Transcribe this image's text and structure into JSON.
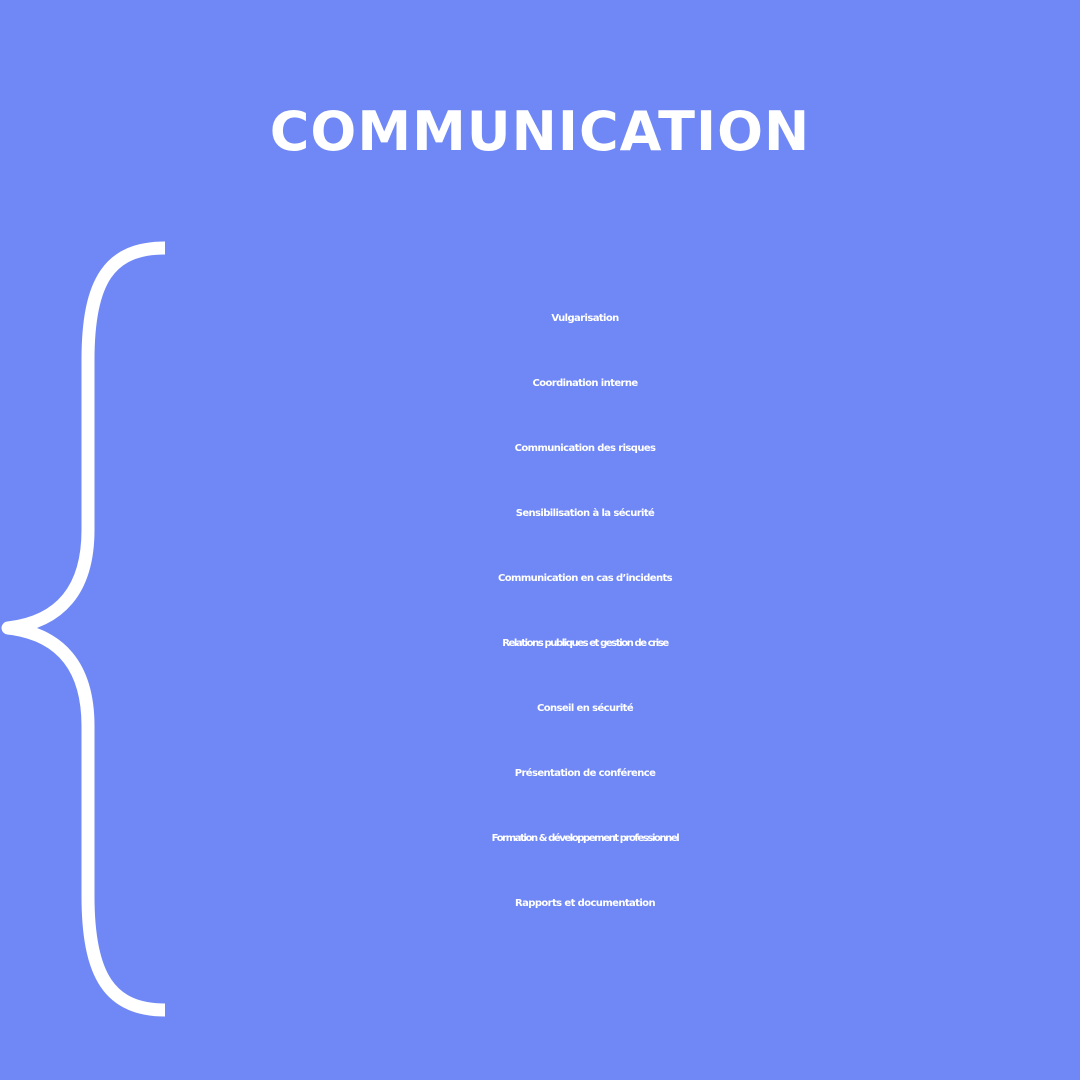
{
  "colors": {
    "background": "#7088F6",
    "text": "#FFFFFF"
  },
  "title": "COMMUNICATION",
  "skills": [
    "Vulgarisation",
    "Coordination interne",
    "Communication des risques",
    "Sensibilisation à la sécurité",
    "Communication en cas d’incidents",
    "Relations publiques et gestion de crise",
    "Conseil en sécurité",
    "Présentation de conférence",
    "Formation & développement professionnel",
    "Rapports et documentation"
  ]
}
